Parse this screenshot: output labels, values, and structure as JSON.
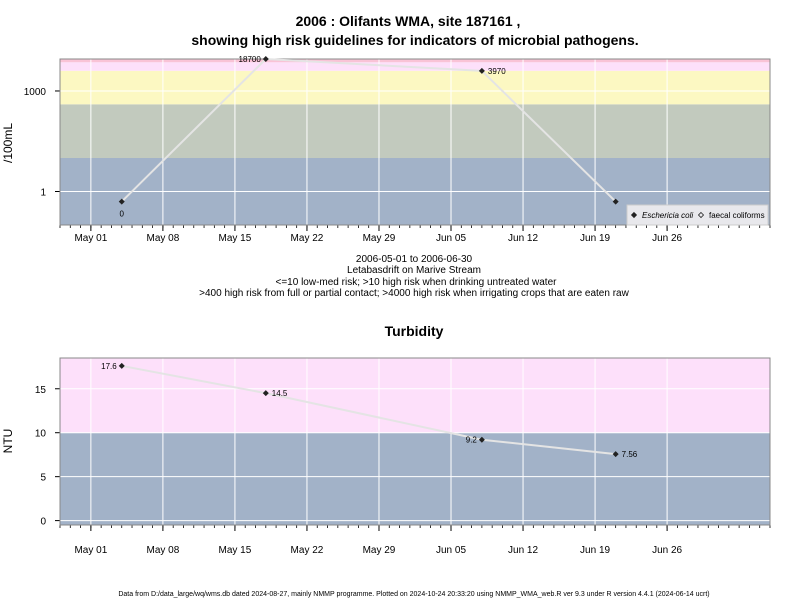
{
  "title_line1": "2006 : Olifants WMA, site 187161 ,",
  "title_line2": "showing high risk guidelines for indicators of microbial pathogens.",
  "caption_lines": [
    "2006-05-01 to 2006-06-30",
    "Letabasdrift on Marive Stream",
    "<=10 low-med risk; >10 high risk when drinking untreated water",
    ">400 high risk from full or partial contact; >4000 high risk when irrigating crops that are eaten raw"
  ],
  "footer": "Data from D:/data_large/wq/wms.db dated 2024-08-27, mainly NMMP programme. Plotted on 2024-10-24 20:33:20 using NMMP_WMA_web.R ver 9.3 under R version 4.4.1 (2024-06-14 ucrt)",
  "x_ticks": [
    "May 01",
    "May 08",
    "May 15",
    "May 22",
    "May 29",
    "Jun 05",
    "Jun 12",
    "Jun 19",
    "Jun 26"
  ],
  "colors": {
    "band_low": "#a2b2c8",
    "band_10_400": "#c2cabe",
    "band_400_4000": "#fcf8c2",
    "band_4000_up": "#fde0fa",
    "band_top": "#f9c3d6",
    "band_ntu_high": "#fde0fa",
    "line": "#e4e4e4",
    "grid": "#ffffff",
    "marker": "#222222"
  },
  "chart_data": [
    {
      "type": "line",
      "ylabel": "/100mL",
      "yscale": "log10",
      "ylim": [
        0.1,
        9000
      ],
      "xlim": [
        "2006-04-28",
        "2006-07-06"
      ],
      "x_ticks": [
        "2006-05-01",
        "2006-05-08",
        "2006-05-15",
        "2006-05-22",
        "2006-05-29",
        "2006-06-05",
        "2006-06-12",
        "2006-06-19",
        "2006-06-26"
      ],
      "y_ticks": [
        1,
        1000
      ],
      "y_tick_labels": [
        "1",
        "1000"
      ],
      "bands": [
        {
          "from": 0.1,
          "to": 10,
          "color": "#a2b2c8"
        },
        {
          "from": 10,
          "to": 400,
          "color": "#c2cabe"
        },
        {
          "from": 400,
          "to": 4000,
          "color": "#fcf8c2"
        },
        {
          "from": 4000,
          "to": 7200,
          "color": "#fde0fa"
        },
        {
          "from": 7200,
          "to": 9000,
          "color": "#f9c3d6"
        }
      ],
      "series": [
        {
          "name": "Eschericia coli",
          "marker": "filled-diamond",
          "points": [
            {
              "x": "2006-05-04",
              "y": 0.5,
              "label": "0"
            },
            {
              "x": "2006-05-18",
              "y": 18700,
              "label": "18700"
            },
            {
              "x": "2006-06-08",
              "y": 3970,
              "label": "3970"
            },
            {
              "x": "2006-06-21",
              "y": 0.5,
              "label": ""
            }
          ]
        }
      ],
      "legend": {
        "position": "bottom-right",
        "entries": [
          {
            "label": "Eschericia coli",
            "marker": "filled-diamond",
            "italic": true
          },
          {
            "label": "faecal coliforms",
            "marker": "open-diamond",
            "italic": false
          }
        ]
      },
      "grid": true
    },
    {
      "type": "line",
      "title": "Turbidity",
      "ylabel": "NTU",
      "yscale": "linear",
      "ylim": [
        -0.5,
        18.5
      ],
      "xlim": [
        "2006-04-28",
        "2006-07-06"
      ],
      "x_ticks": [
        "2006-05-01",
        "2006-05-08",
        "2006-05-15",
        "2006-05-22",
        "2006-05-29",
        "2006-06-05",
        "2006-06-12",
        "2006-06-19",
        "2006-06-26"
      ],
      "y_ticks": [
        0,
        5,
        10,
        15
      ],
      "y_tick_labels": [
        "0",
        "5",
        "10",
        "15"
      ],
      "bands": [
        {
          "from": -0.5,
          "to": 10,
          "color": "#a2b2c8"
        },
        {
          "from": 10,
          "to": 18.5,
          "color": "#fde0fa"
        }
      ],
      "series": [
        {
          "name": "",
          "marker": "filled-diamond",
          "points": [
            {
              "x": "2006-05-04",
              "y": 17.6,
              "label": "17.6"
            },
            {
              "x": "2006-05-18",
              "y": 14.5,
              "label": "14.5"
            },
            {
              "x": "2006-06-08",
              "y": 9.2,
              "label": "9.2"
            },
            {
              "x": "2006-06-21",
              "y": 7.56,
              "label": "7.56"
            }
          ]
        }
      ],
      "grid": true
    }
  ]
}
